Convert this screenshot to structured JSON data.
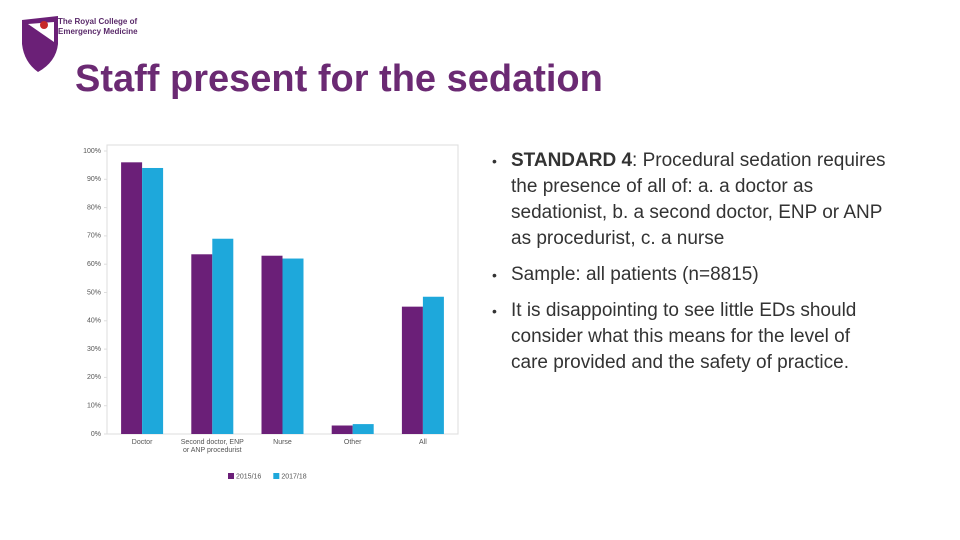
{
  "header": {
    "logo_lines": [
      "The Royal College of",
      "Emergency Medicine"
    ],
    "title": "Staff present for the sedation"
  },
  "chart_data": {
    "type": "bar",
    "categories": [
      "Doctor",
      "Second doctor, ENP or ANP procedurist",
      "Nurse",
      "Other",
      "All"
    ],
    "series": [
      {
        "name": "2015/16",
        "color": "#6b1f78",
        "values": [
          96,
          63.5,
          63,
          3,
          45
        ]
      },
      {
        "name": "2017/18",
        "color": "#1ea8db",
        "values": [
          94,
          69,
          62,
          3.5,
          48.5
        ]
      }
    ],
    "ylim": [
      0,
      100
    ],
    "yticks": [
      {
        "value": 0,
        "label": "0%"
      },
      {
        "value": 10,
        "label": "10%"
      },
      {
        "value": 20,
        "label": "20%"
      },
      {
        "value": 30,
        "label": "30%"
      },
      {
        "value": 40,
        "label": "40%"
      },
      {
        "value": 50,
        "label": "50%"
      },
      {
        "value": 60,
        "label": "60%"
      },
      {
        "value": 70,
        "label": "70%"
      },
      {
        "value": 80,
        "label": "80%"
      },
      {
        "value": 90,
        "label": "90%"
      },
      {
        "value": 100,
        "label": "100%"
      }
    ],
    "grid": false,
    "legend": "bottom"
  },
  "content": {
    "bullets": [
      {
        "label": "STANDARD 4",
        "text": ": Procedural sedation requires the presence of all of: a. a doctor as sedationist, b. a second doctor, ENP or ANP as procedurist, c. a nurse"
      },
      {
        "text": "Sample: all patients (n=8815)"
      },
      {
        "text": "It is disappointing to see little EDs should consider what this means for the level of care provided and the safety of practice."
      }
    ]
  }
}
